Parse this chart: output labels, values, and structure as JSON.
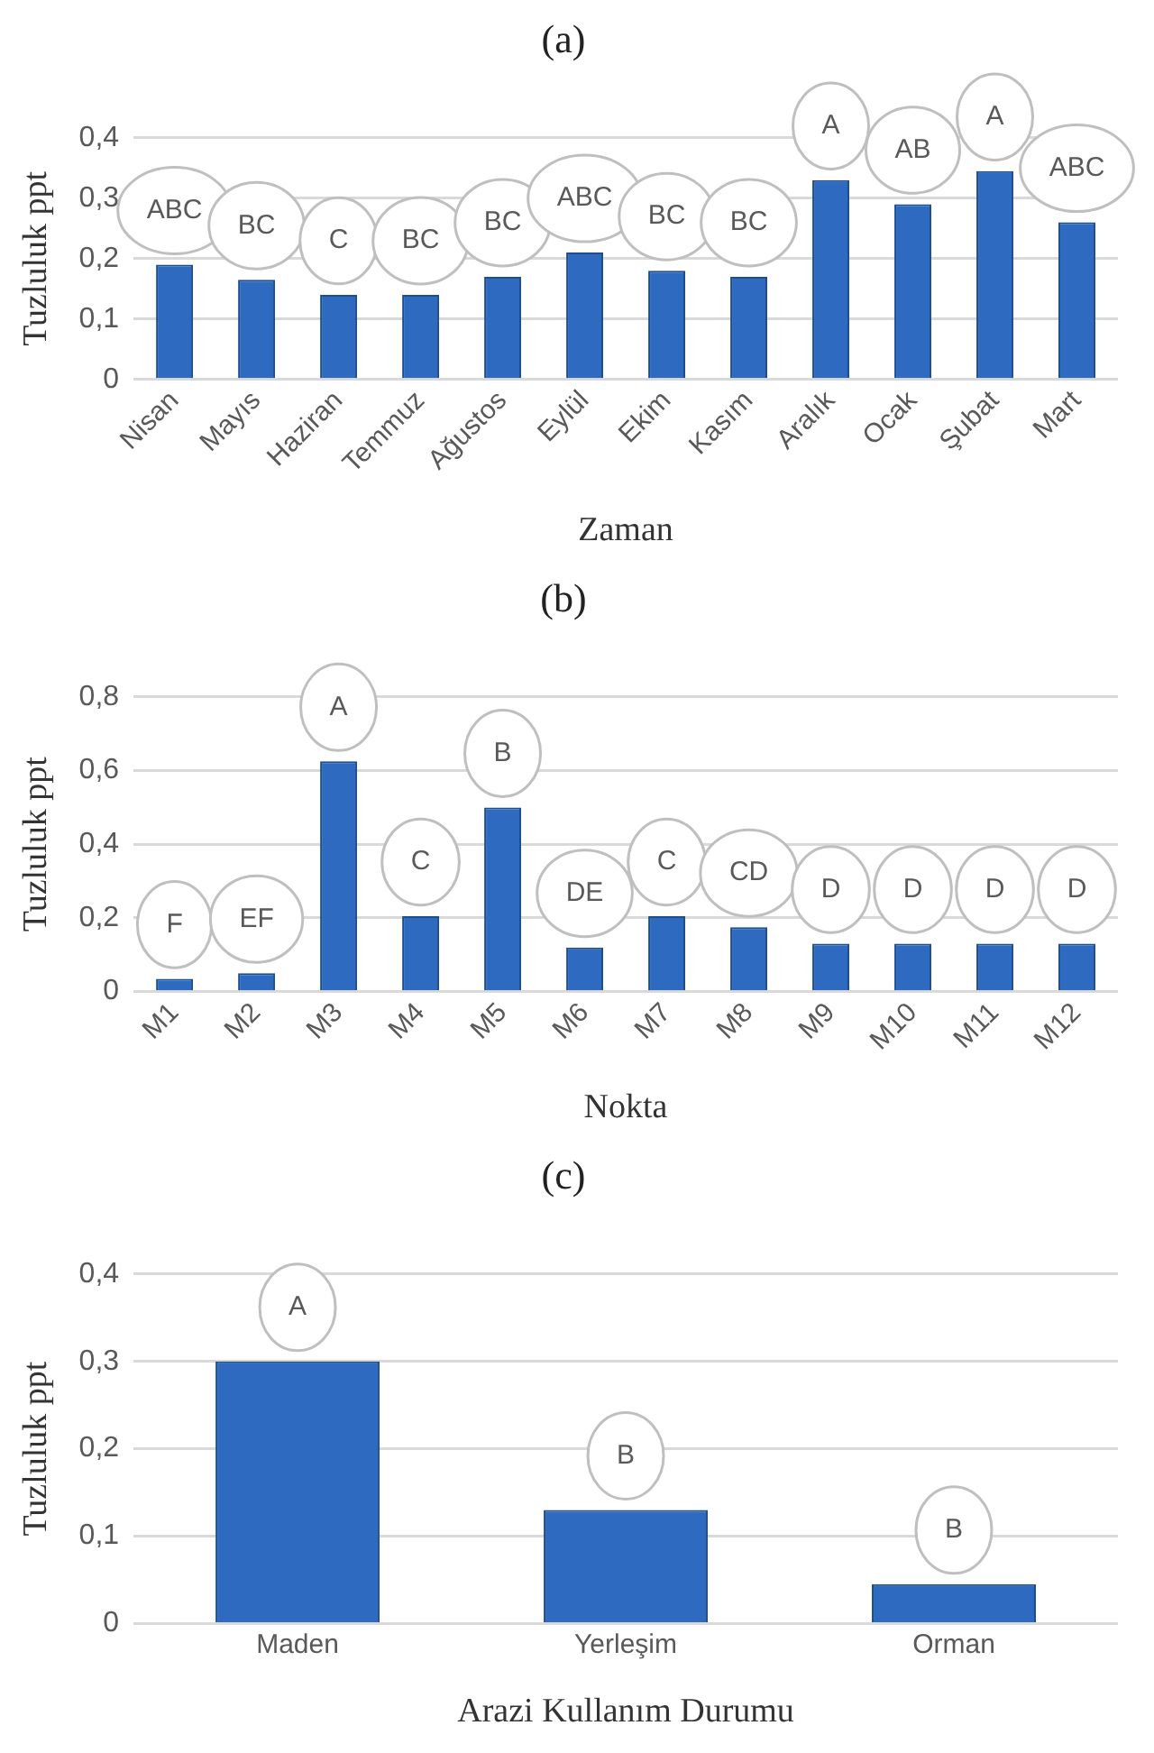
{
  "chart_data": [
    {
      "type": "bar",
      "title": "(a)",
      "xlabel": "Zaman",
      "ylabel": "Tuzluluk ppt",
      "categories": [
        "Nisan",
        "Mayıs",
        "Haziran",
        "Temmuz",
        "Ağustos",
        "Eylül",
        "Ekim",
        "Kasım",
        "Aralık",
        "Ocak",
        "Şubat",
        "Mart"
      ],
      "values": [
        0.19,
        0.165,
        0.14,
        0.14,
        0.17,
        0.21,
        0.18,
        0.17,
        0.33,
        0.29,
        0.345,
        0.26
      ],
      "color": "#2e6bc0",
      "ylim": [
        0,
        0.4
      ],
      "yticks": [
        {
          "value": 0,
          "label": "0"
        },
        {
          "value": 0.1,
          "label": "0,1"
        },
        {
          "value": 0.2,
          "label": "0,2"
        },
        {
          "value": 0.3,
          "label": "0,3"
        },
        {
          "value": 0.4,
          "label": "0,4"
        }
      ],
      "grid": "y",
      "legend": false,
      "annotations": [
        {
          "text": "ABC",
          "x": "Nisan",
          "y": 0.19
        },
        {
          "text": "BC",
          "x": "Mayıs",
          "y": 0.165
        },
        {
          "text": "C",
          "x": "Haziran",
          "y": 0.14
        },
        {
          "text": "BC",
          "x": "Temmuz",
          "y": 0.14
        },
        {
          "text": "BC",
          "x": "Ağustos",
          "y": 0.17
        },
        {
          "text": "ABC",
          "x": "Eylül",
          "y": 0.21
        },
        {
          "text": "BC",
          "x": "Ekim",
          "y": 0.18
        },
        {
          "text": "BC",
          "x": "Kasım",
          "y": 0.17
        },
        {
          "text": "A",
          "x": "Aralık",
          "y": 0.33
        },
        {
          "text": "AB",
          "x": "Ocak",
          "y": 0.29
        },
        {
          "text": "A",
          "x": "Şubat",
          "y": 0.345
        },
        {
          "text": "ABC",
          "x": "Mart",
          "y": 0.26
        }
      ]
    },
    {
      "type": "bar",
      "title": "(b)",
      "xlabel": "Nokta",
      "ylabel": "Tuzluluk ppt",
      "categories": [
        "M1",
        "M2",
        "M3",
        "M4",
        "M5",
        "M6",
        "M7",
        "M8",
        "M9",
        "M10",
        "M11",
        "M12"
      ],
      "values": [
        0.035,
        0.05,
        0.625,
        0.205,
        0.5,
        0.12,
        0.205,
        0.175,
        0.13,
        0.13,
        0.13,
        0.13
      ],
      "color": "#2e6bc0",
      "ylim": [
        0,
        0.8
      ],
      "yticks": [
        {
          "value": 0,
          "label": "0"
        },
        {
          "value": 0.2,
          "label": "0,2"
        },
        {
          "value": 0.4,
          "label": "0,4"
        },
        {
          "value": 0.6,
          "label": "0,6"
        },
        {
          "value": 0.8,
          "label": "0,8"
        }
      ],
      "grid": "y",
      "legend": false,
      "annotations": [
        {
          "text": "F",
          "x": "M1",
          "y": 0.035
        },
        {
          "text": "EF",
          "x": "M2",
          "y": 0.05
        },
        {
          "text": "A",
          "x": "M3",
          "y": 0.625
        },
        {
          "text": "C",
          "x": "M4",
          "y": 0.205
        },
        {
          "text": "B",
          "x": "M5",
          "y": 0.5
        },
        {
          "text": "DE",
          "x": "M6",
          "y": 0.12
        },
        {
          "text": "C",
          "x": "M7",
          "y": 0.205
        },
        {
          "text": "CD",
          "x": "M8",
          "y": 0.175
        },
        {
          "text": "D",
          "x": "M9",
          "y": 0.13
        },
        {
          "text": "D",
          "x": "M10",
          "y": 0.13
        },
        {
          "text": "D",
          "x": "M11",
          "y": 0.13
        },
        {
          "text": "D",
          "x": "M12",
          "y": 0.13
        }
      ]
    },
    {
      "type": "bar",
      "title": "(c)",
      "xlabel": "Arazi Kullanım Durumu",
      "ylabel": "Tuzluluk ppt",
      "categories": [
        "Maden",
        "Yerleşim",
        "Orman"
      ],
      "values": [
        0.3,
        0.13,
        0.045
      ],
      "color": "#2e6bc0",
      "ylim": [
        0,
        0.4
      ],
      "yticks": [
        {
          "value": 0,
          "label": "0"
        },
        {
          "value": 0.1,
          "label": "0,1"
        },
        {
          "value": 0.2,
          "label": "0,2"
        },
        {
          "value": 0.3,
          "label": "0,3"
        },
        {
          "value": 0.4,
          "label": "0,4"
        }
      ],
      "grid": "y",
      "legend": false,
      "annotations": [
        {
          "text": "A",
          "x": "Maden",
          "y": 0.3
        },
        {
          "text": "B",
          "x": "Yerleşim",
          "y": 0.13
        },
        {
          "text": "B",
          "x": "Orman",
          "y": 0.045
        }
      ]
    }
  ]
}
